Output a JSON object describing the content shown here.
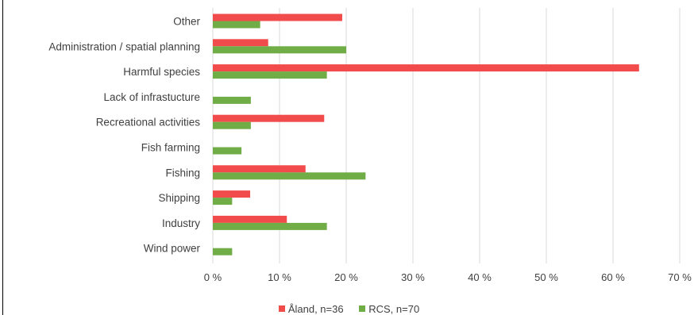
{
  "chart_data": {
    "type": "bar",
    "orientation": "horizontal",
    "categories": [
      "Other",
      "Administration / spatial planning",
      "Harmful species",
      "Lack of infrastucture",
      "Recreational activities",
      "Fish farming",
      "Fishing",
      "Shipping",
      "Industry",
      "Wind power"
    ],
    "series": [
      {
        "name": "Åland, n=36",
        "color": "#f24b4b",
        "values": [
          19.4,
          8.3,
          63.9,
          0,
          16.7,
          0,
          13.9,
          5.6,
          11.1,
          0
        ]
      },
      {
        "name": "RCS, n=70",
        "color": "#70ad47",
        "values": [
          7.1,
          20.0,
          17.1,
          5.7,
          5.7,
          4.3,
          22.9,
          2.9,
          17.1,
          2.9
        ]
      }
    ],
    "xlim": [
      0,
      70
    ],
    "xticks": [
      "0 %",
      "10 %",
      "20 %",
      "30 %",
      "40 %",
      "50 %",
      "60 %",
      "70 %"
    ],
    "grid": true,
    "legend_position": "bottom"
  },
  "style": {
    "gridline_color": "#d9d9d9",
    "axis_label_color": "#404040"
  }
}
